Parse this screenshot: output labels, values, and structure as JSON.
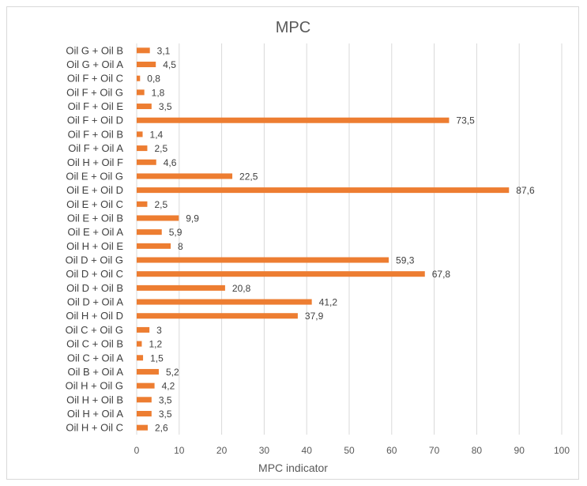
{
  "chart_data": {
    "type": "bar",
    "orientation": "horizontal",
    "title": "MPC",
    "xlabel": "MPC indicator",
    "ylabel": "",
    "xlim": [
      0,
      100
    ],
    "x_ticks": [
      0,
      10,
      20,
      30,
      40,
      50,
      60,
      70,
      80,
      90,
      100
    ],
    "grid": "vertical",
    "bar_color": "#ED7D31",
    "categories": [
      "Oil G + Oil B",
      "Oil G + Oil A",
      "Oil F + Oil C",
      "Oil F + Oil G",
      "Oil F + Oil E",
      "Oil F + Oil D",
      "Oil F + Oil B",
      "Oil F + Oil A",
      "Oil H + Oil F",
      "Oil E + Oil G",
      "Oil E + Oil D",
      "Oil E + Oil C",
      "Oil E + Oil B",
      "Oil E + Oil A",
      "Oil H + Oil E",
      "Oil D + Oil G",
      "Oil D + Oil C",
      "Oil D + Oil B",
      "Oil D + Oil A",
      "Oil H + Oil D",
      "Oil C + Oil G",
      "Oil C + Oil B",
      "Oil C + Oil A",
      "Oil B + Oil A",
      "Oil H + Oil G",
      "Oil H + Oil B",
      "Oil H + Oil A",
      "Oil H + Oil C"
    ],
    "values": [
      3.1,
      4.5,
      0.8,
      1.8,
      3.5,
      73.5,
      1.4,
      2.5,
      4.6,
      22.5,
      87.6,
      2.5,
      9.9,
      5.9,
      8,
      59.3,
      67.8,
      20.8,
      41.2,
      37.9,
      3,
      1.2,
      1.5,
      5.2,
      4.2,
      3.5,
      3.5,
      2.6
    ],
    "value_labels": [
      "3,1",
      "4,5",
      "0,8",
      "1,8",
      "3,5",
      "73,5",
      "1,4",
      "2,5",
      "4,6",
      "22,5",
      "87,6",
      "2,5",
      "9,9",
      "5,9",
      "8",
      "59,3",
      "67,8",
      "20,8",
      "41,2",
      "37,9",
      "3",
      "1,2",
      "1,5",
      "5,2",
      "4,2",
      "3,5",
      "3,5",
      "2,6"
    ]
  }
}
